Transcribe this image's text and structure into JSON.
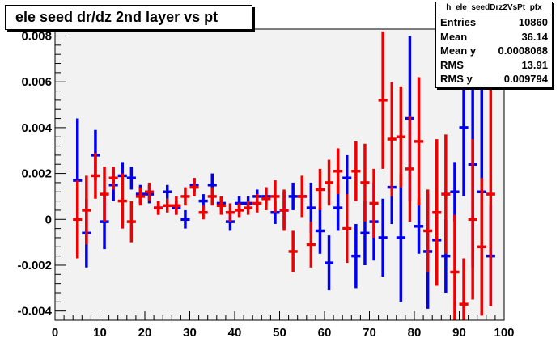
{
  "title": "ele seed dr/dz 2nd layer vs pt",
  "stats": {
    "name": "h_ele_seedDrz2VsPt_pfx",
    "rows": [
      {
        "label": "Entries",
        "value": "10860"
      },
      {
        "label": "Mean",
        "value": "36.14"
      },
      {
        "label": "Mean y",
        "value": "0.0008068"
      },
      {
        "label": "RMS",
        "value": "13.91"
      },
      {
        "label": "RMS y",
        "value": "0.009794"
      }
    ]
  },
  "colors": {
    "frame_bg": "#f2f2f2",
    "blue": "#0000ee",
    "red": "#ee0000"
  },
  "chart_data": {
    "type": "scatter",
    "title": "ele seed dr/dz 2nd layer vs pt",
    "xlabel": "",
    "ylabel": "",
    "xlim": [
      0,
      100
    ],
    "ylim": [
      -0.0044,
      0.0083
    ],
    "grid": false,
    "x_ticks": [
      0,
      10,
      20,
      30,
      40,
      50,
      60,
      70,
      80,
      90,
      100
    ],
    "x_tick_labels": [
      "0",
      "10",
      "20",
      "30",
      "40",
      "50",
      "60",
      "70",
      "80",
      "90",
      "100"
    ],
    "y_ticks": [
      -0.004,
      -0.002,
      0,
      0.002,
      0.004,
      0.006,
      0.008
    ],
    "y_tick_labels": [
      "-0.004",
      "-0.002",
      "0",
      "0.002",
      "0.004",
      "0.006",
      "0.008"
    ],
    "series": [
      {
        "color": "#0000ee",
        "points": [
          {
            "x": 5,
            "y": 0.0017,
            "err": 0.0027
          },
          {
            "x": 7,
            "y": -0.0006,
            "err": 0.0015
          },
          {
            "x": 9,
            "y": 0.0028,
            "err": 0.0011
          },
          {
            "x": 11,
            "y": -0.0001,
            "err": 0.0012
          },
          {
            "x": 13,
            "y": 0.0015,
            "err": 0.0007
          },
          {
            "x": 15,
            "y": 0.0019,
            "err": 0.0006
          },
          {
            "x": 17,
            "y": 0.0018,
            "err": 0.0005
          },
          {
            "x": 19,
            "y": 0.0011,
            "err": 0.0004
          },
          {
            "x": 21,
            "y": 0.0011,
            "err": 0.0004
          },
          {
            "x": 23,
            "y": 0.0005,
            "err": 0.0003
          },
          {
            "x": 25,
            "y": 0.0012,
            "err": 0.0003
          },
          {
            "x": 27,
            "y": 0.0005,
            "err": 0.0003
          },
          {
            "x": 29,
            "y": 0.0,
            "err": 0.0004
          },
          {
            "x": 31,
            "y": 0.0015,
            "err": 0.0003
          },
          {
            "x": 33,
            "y": 0.0008,
            "err": 0.0003
          },
          {
            "x": 35,
            "y": 0.0015,
            "err": 0.0005
          },
          {
            "x": 37,
            "y": 0.0007,
            "err": 0.0003
          },
          {
            "x": 39,
            "y": -0.0001,
            "err": 0.0004
          },
          {
            "x": 41,
            "y": 0.0007,
            "err": 0.0003
          },
          {
            "x": 43,
            "y": 0.0007,
            "err": 0.0003
          },
          {
            "x": 45,
            "y": 0.001,
            "err": 0.0003
          },
          {
            "x": 47,
            "y": 0.001,
            "err": 0.0004
          },
          {
            "x": 49,
            "y": 0.0003,
            "err": 0.0005
          },
          {
            "x": 51,
            "y": 0.0004,
            "err": 0.0008
          },
          {
            "x": 53,
            "y": 0.001,
            "err": 0.0006
          },
          {
            "x": 55,
            "y": 0.001,
            "err": 0.0007
          },
          {
            "x": 57,
            "y": 0.0005,
            "err": 0.0011
          },
          {
            "x": 59,
            "y": -0.0005,
            "err": 0.001
          },
          {
            "x": 61,
            "y": -0.0019,
            "err": 0.0012
          },
          {
            "x": 63,
            "y": 0.0005,
            "err": 0.001
          },
          {
            "x": 65,
            "y": 0.0018,
            "err": 0.001
          },
          {
            "x": 67,
            "y": -0.0016,
            "err": 0.0014
          },
          {
            "x": 69,
            "y": -0.0006,
            "err": 0.0014
          },
          {
            "x": 71,
            "y": -0.0001,
            "err": 0.0017
          },
          {
            "x": 73,
            "y": -0.0008,
            "err": 0.0017
          },
          {
            "x": 75,
            "y": 0.0014,
            "err": 0.0016
          },
          {
            "x": 77,
            "y": -0.0008,
            "err": 0.0028
          },
          {
            "x": 79,
            "y": 0.0044,
            "err": 0.0036
          },
          {
            "x": 81,
            "y": -0.0003,
            "err": 0.0012
          },
          {
            "x": 83,
            "y": -0.0014,
            "err": 0.0025
          },
          {
            "x": 85,
            "y": -0.0009,
            "err": 0.0014
          },
          {
            "x": 87,
            "y": -0.0016,
            "err": 0.0016
          },
          {
            "x": 89,
            "y": 0.0012,
            "err": 0.0013
          },
          {
            "x": 91,
            "y": 0.004,
            "err": 0.003
          },
          {
            "x": 93,
            "y": 0.0024,
            "err": 0.0045
          },
          {
            "x": 95,
            "y": 0.0012,
            "err": 0.005
          },
          {
            "x": 97,
            "y": -0.0016,
            "err": 0.0022
          }
        ]
      },
      {
        "color": "#ee0000",
        "points": [
          {
            "x": 5,
            "y": 0.0,
            "err": 0.0017
          },
          {
            "x": 7,
            "y": 0.0004,
            "err": 0.0015
          },
          {
            "x": 9,
            "y": 0.0019,
            "err": 0.001
          },
          {
            "x": 11,
            "y": 0.0011,
            "err": 0.0012
          },
          {
            "x": 13,
            "y": 0.0018,
            "err": 0.0005
          },
          {
            "x": 15,
            "y": 0.0008,
            "err": 0.0012
          },
          {
            "x": 17,
            "y": -0.0001,
            "err": 0.0009
          },
          {
            "x": 19,
            "y": 0.001,
            "err": 0.0004
          },
          {
            "x": 21,
            "y": 0.0012,
            "err": 0.0004
          },
          {
            "x": 23,
            "y": 0.0005,
            "err": 0.0003
          },
          {
            "x": 25,
            "y": 0.0006,
            "err": 0.0003
          },
          {
            "x": 27,
            "y": 0.0006,
            "err": 0.0004
          },
          {
            "x": 29,
            "y": 0.001,
            "err": 0.0004
          },
          {
            "x": 31,
            "y": 0.0014,
            "err": 0.0004
          },
          {
            "x": 33,
            "y": 0.0003,
            "err": 0.0003
          },
          {
            "x": 35,
            "y": 0.001,
            "err": 0.0004
          },
          {
            "x": 37,
            "y": 0.0006,
            "err": 0.0004
          },
          {
            "x": 39,
            "y": 0.0003,
            "err": 0.0004
          },
          {
            "x": 41,
            "y": 0.0004,
            "err": 0.0003
          },
          {
            "x": 43,
            "y": 0.0005,
            "err": 0.0003
          },
          {
            "x": 45,
            "y": 0.0007,
            "err": 0.0004
          },
          {
            "x": 47,
            "y": 0.0009,
            "err": 0.0005
          },
          {
            "x": 49,
            "y": 0.001,
            "err": 0.0007
          },
          {
            "x": 51,
            "y": 0.0004,
            "err": 0.0009
          },
          {
            "x": 53,
            "y": -0.0014,
            "err": 0.0009
          },
          {
            "x": 55,
            "y": 0.001,
            "err": 0.0009
          },
          {
            "x": 57,
            "y": -0.0011,
            "err": 0.001
          },
          {
            "x": 59,
            "y": 0.0013,
            "err": 0.0009
          },
          {
            "x": 61,
            "y": 0.0016,
            "err": 0.001
          },
          {
            "x": 63,
            "y": 0.0021,
            "err": 0.001
          },
          {
            "x": 65,
            "y": -0.0004,
            "err": 0.0015
          },
          {
            "x": 67,
            "y": 0.0021,
            "err": 0.0013
          },
          {
            "x": 69,
            "y": 0.0016,
            "err": 0.0017
          },
          {
            "x": 71,
            "y": 0.0007,
            "err": 0.0015
          },
          {
            "x": 73,
            "y": 0.0052,
            "err": 0.003
          },
          {
            "x": 75,
            "y": 0.0035,
            "err": 0.0025
          },
          {
            "x": 77,
            "y": 0.0036,
            "err": 0.0022
          },
          {
            "x": 79,
            "y": 0.0022,
            "err": 0.0023
          },
          {
            "x": 81,
            "y": 0.0034,
            "err": 0.0028
          },
          {
            "x": 83,
            "y": -0.0005,
            "err": 0.0018
          },
          {
            "x": 85,
            "y": 0.0003,
            "err": 0.0032
          },
          {
            "x": 87,
            "y": 0.0011,
            "err": 0.0026
          },
          {
            "x": 89,
            "y": -0.0023,
            "err": 0.0025
          },
          {
            "x": 91,
            "y": -0.0037,
            "err": 0.002
          },
          {
            "x": 93,
            "y": 0.0,
            "err": 0.0035
          },
          {
            "x": 95,
            "y": -0.0012,
            "err": 0.003
          },
          {
            "x": 97,
            "y": 0.0011,
            "err": 0.0049
          }
        ]
      }
    ]
  }
}
